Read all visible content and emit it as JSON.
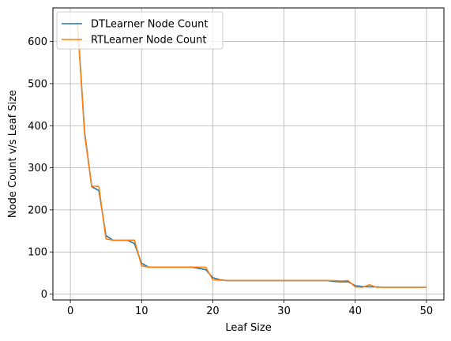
{
  "chart_data": {
    "type": "line",
    "title": "",
    "xlabel": "Leaf Size",
    "ylabel": "Node Count v/s Leaf Size",
    "xlim": [
      -2.45,
      52.45
    ],
    "ylim": [
      -14,
      680
    ],
    "xticks": [
      0,
      10,
      20,
      30,
      40,
      50
    ],
    "yticks": [
      0,
      100,
      200,
      300,
      400,
      500,
      600
    ],
    "grid": true,
    "legend_position": "top-left",
    "series": [
      {
        "name": "DTLearner Node Count",
        "color": "#1f77b4",
        "x": [
          1,
          2,
          3,
          4,
          5,
          6,
          7,
          8,
          9,
          10,
          11,
          12,
          13,
          14,
          15,
          16,
          17,
          18,
          19,
          20,
          21,
          22,
          23,
          24,
          25,
          26,
          27,
          28,
          29,
          30,
          31,
          32,
          33,
          34,
          35,
          36,
          37,
          38,
          39,
          40,
          41,
          42,
          43,
          44,
          45,
          46,
          47,
          48,
          49,
          50
        ],
        "y": [
          647,
          385,
          255,
          246,
          139,
          128,
          128,
          128,
          120,
          73,
          64,
          64,
          64,
          64,
          64,
          64,
          64,
          61,
          58,
          39,
          34,
          32,
          32,
          32,
          32,
          32,
          32,
          32,
          32,
          32,
          32,
          32,
          32,
          32,
          32,
          32,
          30,
          29,
          29,
          20,
          18,
          17,
          17,
          16,
          16,
          16,
          16,
          16,
          16,
          16
        ]
      },
      {
        "name": "RTLearner Node Count",
        "color": "#ff7f0e",
        "x": [
          1,
          2,
          3,
          4,
          5,
          6,
          7,
          8,
          9,
          10,
          11,
          12,
          13,
          14,
          15,
          16,
          17,
          18,
          19,
          20,
          21,
          22,
          23,
          24,
          25,
          26,
          27,
          28,
          29,
          30,
          31,
          32,
          33,
          34,
          35,
          36,
          37,
          38,
          39,
          40,
          41,
          42,
          43,
          44,
          45,
          46,
          47,
          48,
          49,
          50
        ],
        "y": [
          645,
          380,
          256,
          256,
          131,
          128,
          128,
          128,
          128,
          67,
          64,
          64,
          64,
          64,
          64,
          64,
          64,
          64,
          64,
          34,
          33,
          32,
          32,
          32,
          32,
          32,
          32,
          32,
          32,
          32,
          32,
          32,
          32,
          32,
          32,
          32,
          32,
          31,
          32,
          17,
          16,
          22,
          16,
          16,
          16,
          16,
          16,
          16,
          16,
          16
        ]
      }
    ]
  }
}
